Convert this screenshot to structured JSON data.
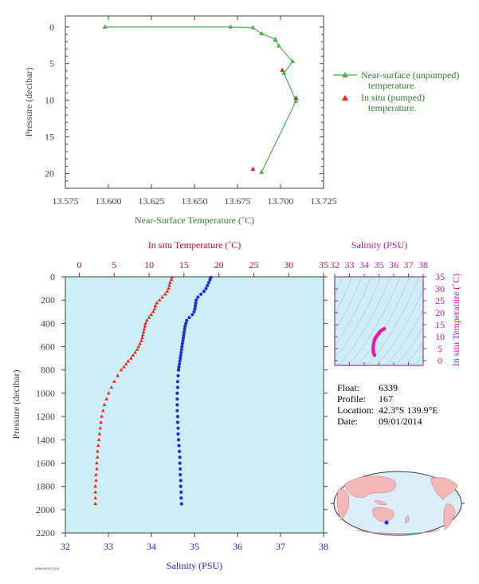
{
  "colors": {
    "green": "#4caf50",
    "green_text": "#2e7d32",
    "axis_dark": "#2f4f2f",
    "red": "#e8241c",
    "blue": "#1c2fd6",
    "magenta": "#e619a8",
    "panel_bg": "#cdeef7",
    "tick_red": "#c1121f",
    "tick_blue": "#1f2bb0",
    "tick_magenta": "#c2189a",
    "ocean": "#dbeef7",
    "land": "#f2b8b8"
  },
  "info": {
    "float_label": "Float:",
    "float_value": "6339",
    "profile_label": "Profile:",
    "profile_value": "167",
    "location_label": "Location:",
    "location_value": "42.3°S  139.9°E",
    "date_label": "Date:",
    "date_value": "09/01/2014"
  },
  "footer_note": "AOML/ARGO 2015",
  "chart_data": [
    {
      "type": "line",
      "xlabel": "Near-Surface Temperature (˚C)",
      "ylabel": "Pressure (decibar)",
      "xlim": [
        13.575,
        13.725
      ],
      "ylim": [
        22,
        -1.5
      ],
      "xticks": [
        13.575,
        13.6,
        13.625,
        13.65,
        13.675,
        13.7,
        13.725
      ],
      "xtick_labels": [
        "13.575",
        "13.600",
        "13.625",
        "13.650",
        "13.675",
        "13.700",
        "13.725"
      ],
      "yticks": [
        0,
        5,
        10,
        15,
        20
      ],
      "ytick_labels": [
        "0",
        "5",
        "10",
        "15",
        "20"
      ],
      "legend_position": "right",
      "series": [
        {
          "name": "Near-surface (unpumped) temperature.",
          "marker": "triangle",
          "x": [
            13.598,
            13.671,
            13.684,
            13.689,
            13.697,
            13.697,
            13.699,
            13.707,
            13.702,
            13.709,
            13.689
          ],
          "y": [
            0.0,
            0.0,
            0.1,
            0.9,
            1.7,
            1.8,
            2.6,
            4.7,
            6.3,
            10.1,
            19.8
          ]
        },
        {
          "name": "In situ (pumped) temperature.",
          "marker": "triangle",
          "x": [
            13.701,
            13.709,
            13.684
          ],
          "y": [
            5.9,
            9.7,
            19.4
          ]
        }
      ]
    },
    {
      "type": "scatter",
      "x_top_label": "In situ Temperature (˚C)",
      "x_bottom_label": "Salinity (PSU)",
      "ylabel": "Pressure (decibar)",
      "temp_lim": [
        -2,
        35
      ],
      "sal_lim": [
        32,
        38
      ],
      "ylim": [
        2200,
        0
      ],
      "temp_ticks": [
        "0",
        "5",
        "10",
        "15",
        "20",
        "25",
        "30",
        "35"
      ],
      "sal_ticks": [
        "32",
        "33",
        "34",
        "35",
        "36",
        "37",
        "38"
      ],
      "pressure_ticks": [
        "0",
        "200",
        "400",
        "600",
        "800",
        "1000",
        "1200",
        "1400",
        "1600",
        "1800",
        "2000",
        "2200"
      ],
      "series": [
        {
          "name": "temperature",
          "axis": "top",
          "pressure": [
            5,
            25,
            50,
            75,
            100,
            125,
            150,
            175,
            200,
            225,
            250,
            275,
            300,
            325,
            350,
            375,
            400,
            425,
            450,
            475,
            500,
            525,
            550,
            575,
            600,
            625,
            650,
            675,
            700,
            725,
            750,
            775,
            800,
            850,
            900,
            950,
            1000,
            1050,
            1100,
            1150,
            1200,
            1250,
            1300,
            1350,
            1400,
            1450,
            1500,
            1550,
            1600,
            1650,
            1700,
            1750,
            1800,
            1850,
            1900,
            1950
          ],
          "temperature": [
            13.3,
            13.2,
            13.0,
            12.9,
            12.8,
            12.6,
            12.3,
            11.9,
            11.5,
            11.1,
            10.9,
            10.8,
            10.6,
            10.3,
            10.0,
            9.7,
            9.5,
            9.4,
            9.3,
            9.2,
            9.1,
            9.0,
            8.9,
            8.7,
            8.5,
            8.3,
            8.0,
            7.7,
            7.4,
            7.0,
            6.7,
            6.4,
            6.0,
            5.5,
            5.0,
            4.6,
            4.2,
            3.9,
            3.6,
            3.4,
            3.2,
            3.1,
            3.0,
            2.9,
            2.8,
            2.7,
            2.6,
            2.6,
            2.5,
            2.5,
            2.4,
            2.4,
            2.3,
            2.3,
            2.3,
            2.3
          ]
        },
        {
          "name": "salinity",
          "axis": "bottom",
          "pressure": [
            5,
            25,
            50,
            75,
            100,
            125,
            150,
            175,
            200,
            225,
            250,
            275,
            300,
            325,
            350,
            375,
            400,
            425,
            450,
            475,
            500,
            525,
            550,
            575,
            600,
            625,
            650,
            675,
            700,
            725,
            750,
            775,
            800,
            850,
            900,
            950,
            1000,
            1050,
            1100,
            1150,
            1200,
            1250,
            1300,
            1350,
            1400,
            1450,
            1500,
            1550,
            1600,
            1650,
            1700,
            1750,
            1800,
            1850,
            1900,
            1950
          ],
          "salinity": [
            35.38,
            35.36,
            35.33,
            35.3,
            35.27,
            35.22,
            35.15,
            35.08,
            35.04,
            35.03,
            35.02,
            35.01,
            34.99,
            34.95,
            34.88,
            34.82,
            34.8,
            34.78,
            34.77,
            34.76,
            34.75,
            34.74,
            34.73,
            34.72,
            34.71,
            34.7,
            34.69,
            34.68,
            34.67,
            34.66,
            34.65,
            34.64,
            34.63,
            34.62,
            34.61,
            34.61,
            34.6,
            34.6,
            34.6,
            34.6,
            34.61,
            34.61,
            34.62,
            34.62,
            34.63,
            34.64,
            34.65,
            34.66,
            34.66,
            34.67,
            34.67,
            34.68,
            34.68,
            34.69,
            34.69,
            34.7
          ]
        }
      ]
    },
    {
      "type": "scatter",
      "title": "Salinity (PSU)",
      "ylabel": "In situ Temperature (˚C)",
      "xlim": [
        32,
        38
      ],
      "ylim": [
        -2,
        35
      ],
      "xtick_labels": [
        "32",
        "33",
        "34",
        "35",
        "36",
        "37",
        "38"
      ],
      "ytick_labels": [
        "0",
        "5",
        "10",
        "15",
        "20",
        "25",
        "30",
        "35"
      ],
      "x": [
        34.7,
        34.68,
        34.66,
        34.63,
        34.62,
        34.61,
        34.61,
        34.62,
        34.64,
        34.67,
        34.71,
        34.76,
        34.82,
        34.9,
        34.99,
        35.03,
        35.12,
        35.22,
        35.3,
        35.36
      ],
      "y": [
        2.3,
        2.5,
        2.8,
        3.2,
        3.6,
        4.2,
        5.0,
        6.0,
        7.0,
        8.0,
        9.0,
        9.5,
        10.0,
        10.8,
        11.3,
        11.8,
        12.4,
        12.8,
        13.1,
        13.3
      ]
    }
  ]
}
